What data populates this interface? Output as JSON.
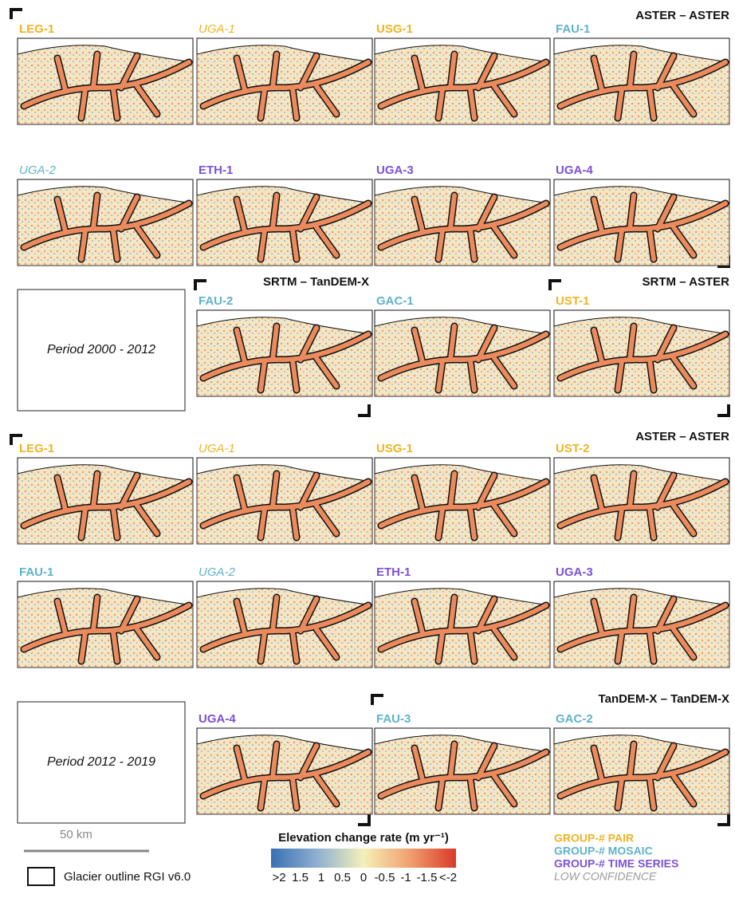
{
  "sections": [
    {
      "title": "ASTER – ASTER",
      "maps": [
        {
          "label": "LEG-1",
          "color": "#f0b323",
          "italic": false
        },
        {
          "label": "UGA-1",
          "color": "#f0b323",
          "italic": true
        },
        {
          "label": "USG-1",
          "color": "#f0b323",
          "italic": false
        },
        {
          "label": "FAU-1",
          "color": "#5fb3c9",
          "italic": false
        },
        {
          "label": "UGA-2",
          "color": "#5fb3c9",
          "italic": true
        },
        {
          "label": "ETH-1",
          "color": "#7b52d6",
          "italic": false
        },
        {
          "label": "UGA-3",
          "color": "#7b52d6",
          "italic": false
        },
        {
          "label": "UGA-4",
          "color": "#7b52d6",
          "italic": false
        }
      ]
    },
    {
      "title": "SRTM – TanDEM-X",
      "maps": [
        {
          "label": "FAU-2",
          "color": "#5fb3c9",
          "italic": false
        },
        {
          "label": "GAC-1",
          "color": "#5fb3c9",
          "italic": false
        }
      ]
    },
    {
      "title": "SRTM – ASTER",
      "maps": [
        {
          "label": "UST-1",
          "color": "#f0b323",
          "italic": false
        }
      ]
    },
    {
      "title": "ASTER – ASTER",
      "maps": [
        {
          "label": "LEG-1",
          "color": "#f0b323",
          "italic": false
        },
        {
          "label": "UGA-1",
          "color": "#f0b323",
          "italic": true
        },
        {
          "label": "USG-1",
          "color": "#f0b323",
          "italic": false
        },
        {
          "label": "UST-2",
          "color": "#f0b323",
          "italic": false
        },
        {
          "label": "FAU-1",
          "color": "#5fb3c9",
          "italic": false
        },
        {
          "label": "UGA-2",
          "color": "#5fb3c9",
          "italic": true
        },
        {
          "label": "ETH-1",
          "color": "#7b52d6",
          "italic": false
        },
        {
          "label": "UGA-3",
          "color": "#7b52d6",
          "italic": false
        },
        {
          "label": "UGA-4",
          "color": "#7b52d6",
          "italic": false
        }
      ]
    },
    {
      "title": "TanDEM-X – TanDEM-X",
      "maps": [
        {
          "label": "FAU-3",
          "color": "#5fb3c9",
          "italic": false
        },
        {
          "label": "GAC-2",
          "color": "#5fb3c9",
          "italic": false
        }
      ]
    }
  ],
  "periods": [
    "Period 2000 - 2012",
    "Period 2012 - 2019"
  ],
  "scale_bar": "50 km",
  "outline_legend": "Glacier outline RGI v6.0",
  "colorbar": {
    "title": "Elevation change rate (m yr⁻¹)",
    "labels": [
      ">2",
      "1.5",
      "1",
      "0.5",
      "0",
      "-0.5",
      "-1",
      "-1.5",
      "<-2"
    ],
    "colors": [
      "#3a6fb5",
      "#8fb0d0",
      "#f5f0b8",
      "#f0a070",
      "#d93a2a"
    ]
  },
  "group_legend": [
    {
      "label": "GROUP-# PAIR",
      "color": "#f0b323",
      "italic": false
    },
    {
      "label": "GROUP-# MOSAIC",
      "color": "#5fb3c9",
      "italic": false
    },
    {
      "label": "GROUP-# TIME SERIES",
      "color": "#7b52d6",
      "italic": false
    },
    {
      "label": "LOW CONFIDENCE",
      "color": "#999999",
      "italic": true
    }
  ]
}
